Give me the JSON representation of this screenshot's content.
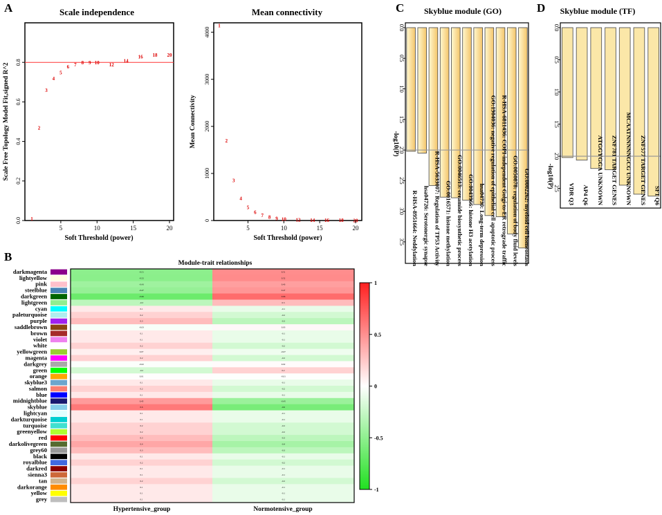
{
  "panels": {
    "A": {
      "letter": "A"
    },
    "B": {
      "letter": "B"
    },
    "C": {
      "letter": "C"
    },
    "D": {
      "letter": "D"
    }
  },
  "colors": {
    "threshold_line": "#ff3333",
    "point_label": "#dd0000",
    "bar_fill": "#fbe7a8",
    "bar_stroke": "#555555",
    "go_gradient_light": "#fff8d0",
    "go_gradient_dark": "#f4c56a",
    "heat_high": "#ff2020",
    "heat_mid": "#ffffff",
    "heat_low": "#20e020",
    "ref_line": "#999999"
  },
  "chart_data": [
    {
      "id": "A1",
      "type": "scatter",
      "title": "Scale independence",
      "xlabel": "Soft Threshold (power)",
      "ylabel": "Scale Free Topology Model Fit,signed R^2",
      "xlim": [
        1,
        20
      ],
      "ylim": [
        0,
        1.0
      ],
      "xticks": [
        5,
        10,
        15,
        20
      ],
      "yticks": [
        0.0,
        0.2,
        0.4,
        0.6,
        0.8
      ],
      "ytick_labels": [
        "0.0",
        "0.2",
        "0.4",
        "0.6",
        "0.8"
      ],
      "hline": 0.8,
      "points": [
        {
          "x": 1,
          "y": 0.01,
          "label": "1"
        },
        {
          "x": 2,
          "y": 0.47,
          "label": "2"
        },
        {
          "x": 3,
          "y": 0.66,
          "label": "3"
        },
        {
          "x": 4,
          "y": 0.72,
          "label": "4"
        },
        {
          "x": 5,
          "y": 0.75,
          "label": "5"
        },
        {
          "x": 6,
          "y": 0.78,
          "label": "6"
        },
        {
          "x": 7,
          "y": 0.79,
          "label": "7"
        },
        {
          "x": 8,
          "y": 0.8,
          "label": "8"
        },
        {
          "x": 9,
          "y": 0.8,
          "label": "9"
        },
        {
          "x": 10,
          "y": 0.8,
          "label": "10"
        },
        {
          "x": 12,
          "y": 0.79,
          "label": "12"
        },
        {
          "x": 14,
          "y": 0.81,
          "label": "14"
        },
        {
          "x": 16,
          "y": 0.83,
          "label": "16"
        },
        {
          "x": 18,
          "y": 0.84,
          "label": "18"
        },
        {
          "x": 20,
          "y": 0.84,
          "label": "20"
        }
      ]
    },
    {
      "id": "A2",
      "type": "scatter",
      "title": "Mean connectivity",
      "xlabel": "Soft Threshold (power)",
      "ylabel": "Mean Connectivity",
      "xlim": [
        1,
        20
      ],
      "ylim": [
        0,
        4200
      ],
      "xticks": [
        5,
        10,
        15,
        20
      ],
      "yticks": [
        0,
        1000,
        2000,
        3000,
        4000
      ],
      "ytick_labels": [
        "0",
        "1000",
        "2000",
        "3000",
        "4000"
      ],
      "points": [
        {
          "x": 1,
          "y": 4150,
          "label": "1"
        },
        {
          "x": 2,
          "y": 1700,
          "label": "2"
        },
        {
          "x": 3,
          "y": 860,
          "label": "3"
        },
        {
          "x": 4,
          "y": 480,
          "label": "4"
        },
        {
          "x": 5,
          "y": 290,
          "label": "5"
        },
        {
          "x": 6,
          "y": 180,
          "label": "6"
        },
        {
          "x": 7,
          "y": 120,
          "label": "7"
        },
        {
          "x": 8,
          "y": 80,
          "label": "8"
        },
        {
          "x": 9,
          "y": 55,
          "label": "9"
        },
        {
          "x": 10,
          "y": 40,
          "label": "10"
        },
        {
          "x": 12,
          "y": 25,
          "label": "12"
        },
        {
          "x": 14,
          "y": 18,
          "label": "14"
        },
        {
          "x": 16,
          "y": 14,
          "label": "16"
        },
        {
          "x": 18,
          "y": 12,
          "label": "18"
        },
        {
          "x": 20,
          "y": 10,
          "label": "20"
        }
      ]
    },
    {
      "id": "B",
      "type": "heatmap",
      "title": "Module-trait relationships",
      "columns": [
        "Hypertensive_group",
        "Normotensive_group"
      ],
      "legend_ticks": [
        1,
        0.5,
        0,
        -0.5,
        -1
      ],
      "legend_tick_labels": [
        "1",
        "0.5",
        "0",
        "-0.5",
        "-1"
      ],
      "rows": [
        {
          "name": "darkmagenta",
          "color": "#8b008b",
          "values": [
            -0.51,
            0.51
          ]
        },
        {
          "name": "lightyellow",
          "color": "#ffffe0",
          "values": [
            -0.52,
            0.52
          ]
        },
        {
          "name": "pink",
          "color": "#ffc0cb",
          "values": [
            -0.43,
            0.43
          ]
        },
        {
          "name": "steelblue",
          "color": "#4682b4",
          "values": [
            -0.47,
            0.47
          ]
        },
        {
          "name": "darkgreen",
          "color": "#006400",
          "values": [
            -0.66,
            0.66
          ]
        },
        {
          "name": "lightgreen",
          "color": "#90ee90",
          "values": [
            -0.3,
            0.3
          ]
        },
        {
          "name": "cyan",
          "color": "#00ffff",
          "values": [
            0.1,
            -0.1
          ]
        },
        {
          "name": "paleturquoise",
          "color": "#afeeee",
          "values": [
            0.2,
            -0.2
          ]
        },
        {
          "name": "purple",
          "color": "#a020f0",
          "values": [
            0.3,
            -0.3
          ]
        },
        {
          "name": "saddlebrown",
          "color": "#8b4513",
          "values": [
            -0.03,
            0.03
          ]
        },
        {
          "name": "brown",
          "color": "#a52a2a",
          "values": [
            0.1,
            -0.1
          ]
        },
        {
          "name": "violet",
          "color": "#ee82ee",
          "values": [
            0.1,
            -0.1
          ]
        },
        {
          "name": "white",
          "color": "#ffffff",
          "values": [
            0.2,
            -0.2
          ]
        },
        {
          "name": "yellowgreen",
          "color": "#9acd32",
          "values": [
            0.07,
            -0.07
          ]
        },
        {
          "name": "magenta",
          "color": "#ff00ff",
          "values": [
            0.2,
            -0.2
          ]
        },
        {
          "name": "darkgrey",
          "color": "#a9a9a9",
          "values": [
            -0.02,
            0.02
          ]
        },
        {
          "name": "green",
          "color": "#00ff00",
          "values": [
            -0.2,
            0.2
          ]
        },
        {
          "name": "orange",
          "color": "#ffa500",
          "values": [
            0.01,
            -0.01
          ]
        },
        {
          "name": "skyblue3",
          "color": "#6ca6cd",
          "values": [
            0.1,
            -0.1
          ]
        },
        {
          "name": "salmon",
          "color": "#fa8072",
          "values": [
            0.2,
            -0.2
          ]
        },
        {
          "name": "blue",
          "color": "#0000ff",
          "values": [
            0.1,
            -0.1
          ]
        },
        {
          "name": "midnightblue",
          "color": "#191970",
          "values": [
            0.45,
            -0.45
          ]
        },
        {
          "name": "skyblue",
          "color": "#87ceeb",
          "values": [
            0.6,
            -0.6
          ]
        },
        {
          "name": "lightcyan",
          "color": "#e0ffff",
          "values": [
            0.1,
            -0.1
          ]
        },
        {
          "name": "darkturquoise",
          "color": "#00ced1",
          "values": [
            0.1,
            -0.1
          ]
        },
        {
          "name": "turquoise",
          "color": "#40e0d0",
          "values": [
            0.2,
            -0.2
          ]
        },
        {
          "name": "greenyellow",
          "color": "#adff2f",
          "values": [
            0.2,
            -0.2
          ]
        },
        {
          "name": "red",
          "color": "#ff0000",
          "values": [
            0.3,
            -0.3
          ]
        },
        {
          "name": "darkolivegreen",
          "color": "#556b2f",
          "values": [
            0.4,
            -0.4
          ]
        },
        {
          "name": "grey60",
          "color": "#999999",
          "values": [
            0.3,
            -0.3
          ]
        },
        {
          "name": "black",
          "color": "#000000",
          "values": [
            0.1,
            -0.1
          ]
        },
        {
          "name": "royalblue",
          "color": "#4169e1",
          "values": [
            0.2,
            -0.2
          ]
        },
        {
          "name": "darkred",
          "color": "#8b0000",
          "values": [
            0.1,
            -0.1
          ]
        },
        {
          "name": "sienna3",
          "color": "#cd6839",
          "values": [
            0.1,
            -0.1
          ]
        },
        {
          "name": "tan",
          "color": "#d2b48c",
          "values": [
            0.2,
            -0.2
          ]
        },
        {
          "name": "darkorange",
          "color": "#ff8c00",
          "values": [
            0.1,
            -0.1
          ]
        },
        {
          "name": "yellow",
          "color": "#ffff00",
          "values": [
            0.1,
            -0.1
          ]
        },
        {
          "name": "grey",
          "color": "#bebebe",
          "values": [
            0.1,
            -0.1
          ]
        }
      ]
    },
    {
      "id": "C",
      "type": "bar",
      "title": "Skyblue module (GO)",
      "ylabel": "-log10(P)",
      "ylim": [
        0,
        3.75
      ],
      "yticks": [
        0.0,
        0.5,
        1.0,
        1.5,
        2.0,
        2.5,
        3.0,
        3.5
      ],
      "ytick_labels": [
        "0.0",
        "0.5",
        "1.0",
        "1.5",
        "2.0",
        "2.5",
        "3.0",
        "3.5"
      ],
      "ref_line": 2.0,
      "categories": [
        "R-HSA-8951664: Neddylation",
        "hsa04726: Serotonergic synapse",
        "R-HSA-5633007: Regulation of TP53 Activity",
        "GO:0016571: histone methylation",
        "GO:0046513: ceramide biosynthetic process",
        "GO:0043966: histone H3 acetylation",
        "hsa04730: Long-term depression",
        "GO:1904036: negative regulation of epithelial cell apoptotic process",
        "R-HSA-6811436: COPI-independent Golgi-to-ER retrograde traffic",
        "GO:0050878: regulation of body fluid levels",
        "GO:0002262: myeloid cell homeostasis"
      ],
      "values": [
        2.02,
        2.05,
        2.58,
        2.77,
        2.78,
        2.82,
        2.89,
        3.07,
        3.09,
        3.37,
        3.6
      ]
    },
    {
      "id": "D",
      "type": "bar",
      "title": "Skyblue module (TF)",
      "ylabel": "-log10(P)",
      "ylim": [
        0,
        2.72
      ],
      "yticks": [
        0.0,
        0.5,
        1.0,
        1.5,
        2.0,
        2.5
      ],
      "ytick_labels": [
        "0.0",
        "0.5",
        "1.0",
        "1.5",
        "2.0",
        "2.5"
      ],
      "ref_line": 2.0,
      "categories": [
        "VDR Q3",
        "AP4 Q6",
        "ATGGYGGA UNKNOWN",
        "ZNF781 TARGET GENES",
        "MCAATNNNNNGCG UNKNOWN",
        "ZNF577 TARGET GENES",
        "SF1 Q6"
      ],
      "values": [
        2.02,
        2.06,
        2.19,
        2.21,
        2.45,
        2.59,
        2.62
      ]
    }
  ]
}
